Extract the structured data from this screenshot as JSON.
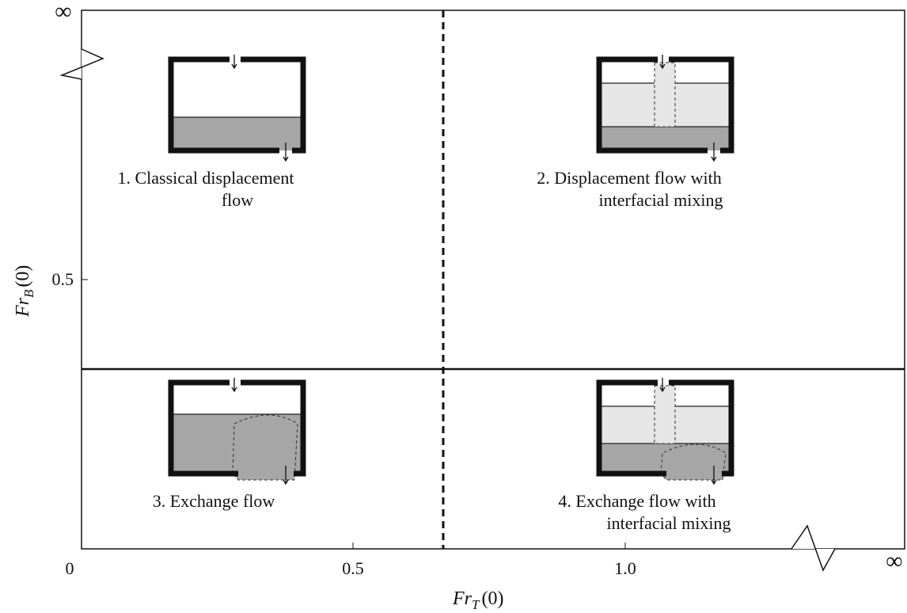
{
  "axes": {
    "x_label": {
      "base": "Fr",
      "sub": "T",
      "arg": "(0)"
    },
    "y_label": {
      "base": "Fr",
      "sub": "B",
      "arg": "(0)"
    },
    "x_ticks": [
      "0",
      "0.5",
      "1.0",
      "∞"
    ],
    "y_ticks": [
      "0.5",
      "∞"
    ]
  },
  "regions": [
    {
      "lines": [
        "1. Classical displacement",
        "flow"
      ]
    },
    {
      "lines": [
        "2. Displacement flow with",
        "interfacial mixing"
      ]
    },
    {
      "lines": [
        "3. Exchange flow"
      ]
    },
    {
      "lines": [
        "4. Exchange flow with",
        "interfacial mixing"
      ]
    }
  ]
}
